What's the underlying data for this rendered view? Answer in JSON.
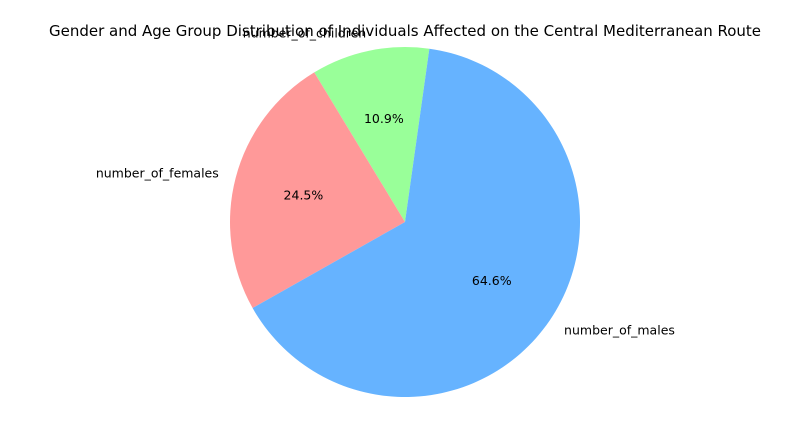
{
  "chart_data": {
    "type": "pie",
    "title": "Gender and Age Group Distribution of Individuals Affected on the Central Mediterranean Route",
    "categories": [
      "number_of_males",
      "number_of_females",
      "number_of_children"
    ],
    "values": [
      64.6,
      24.5,
      10.9
    ],
    "value_labels": [
      "64.6%",
      "24.5%",
      "10.9%"
    ],
    "colors": [
      "#66b3ff",
      "#ff9999",
      "#99ff99"
    ],
    "start_angle_deg": 82.0,
    "direction": "counterclockwise",
    "legend": "none"
  }
}
